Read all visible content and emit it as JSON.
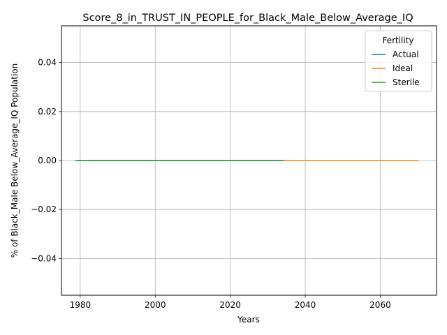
{
  "chart_data": {
    "type": "line",
    "title": "Score_8_in_TRUST_IN_PEOPLE_for_Black_Male_Below_Average_IQ",
    "xlabel": "Years",
    "ylabel": "% of Black_Male Below_Average_IQ Population",
    "xlim": [
      1975,
      2075
    ],
    "ylim": [
      -0.055,
      0.055
    ],
    "xticks": [
      1980,
      2000,
      2020,
      2040,
      2060
    ],
    "yticks": [
      -0.04,
      -0.02,
      0.0,
      0.02,
      0.04
    ],
    "ytick_labels": [
      "−0.04",
      "−0.02",
      "0.00",
      "0.02",
      "0.04"
    ],
    "grid": true,
    "legend": {
      "title": "Fertility",
      "position": "top-right"
    },
    "series": [
      {
        "name": "Actual",
        "color": "#1f77b4",
        "x": [
          1978.7,
          2034.3
        ],
        "y": [
          0.0,
          0.0
        ]
      },
      {
        "name": "Ideal",
        "color": "#ff7f0e",
        "x": [
          2034.3,
          2070.1
        ],
        "y": [
          0.0,
          0.0
        ]
      },
      {
        "name": "Sterile",
        "color": "#2ca02c",
        "x": [
          1978.7,
          2034.3
        ],
        "y": [
          0.0,
          0.0
        ]
      }
    ]
  }
}
